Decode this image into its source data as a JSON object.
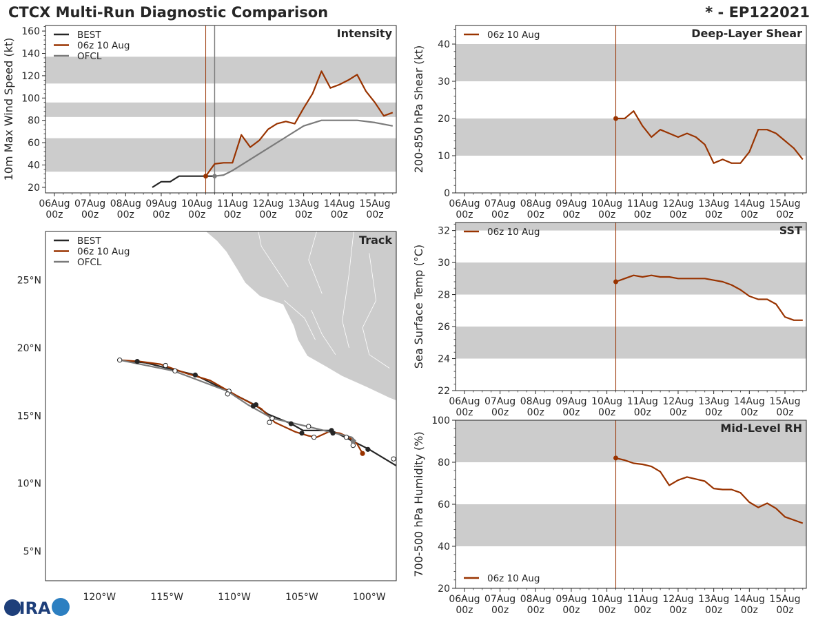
{
  "header": {
    "title": "CTCX Multi-Run Diagnostic Comparison",
    "storm_id": "* - EP122021"
  },
  "colors": {
    "best": "#262626",
    "run": "#993300",
    "ofcl": "#7a7a7a",
    "band": "#cccccc",
    "land": "#cccccc"
  },
  "logo": {
    "text": "CIRA"
  },
  "time_axis": {
    "ticks": [
      {
        "line1": "06Aug",
        "line2": "00z",
        "day": 0
      },
      {
        "line1": "07Aug",
        "line2": "00z",
        "day": 1
      },
      {
        "line1": "08Aug",
        "line2": "00z",
        "day": 2
      },
      {
        "line1": "09Aug",
        "line2": "00z",
        "day": 3
      },
      {
        "line1": "10Aug",
        "line2": "00z",
        "day": 4
      },
      {
        "line1": "11Aug",
        "line2": "00z",
        "day": 5
      },
      {
        "line1": "12Aug",
        "line2": "00z",
        "day": 6
      },
      {
        "line1": "13Aug",
        "line2": "00z",
        "day": 7
      },
      {
        "line1": "14Aug",
        "line2": "00z",
        "day": 8
      },
      {
        "line1": "15Aug",
        "line2": "00z",
        "day": 9
      }
    ],
    "range_days": [
      -0.25,
      9.6
    ]
  },
  "chart_data": [
    {
      "id": "intensity",
      "type": "line",
      "title": "Intensity",
      "ylabel": "10m Max Wind Speed (kt)",
      "ylim": [
        15,
        165
      ],
      "yticks": [
        20,
        40,
        60,
        80,
        100,
        120,
        140,
        160
      ],
      "bands": [
        [
          34,
          64
        ],
        [
          83,
          96
        ],
        [
          113,
          137
        ]
      ],
      "init_day": 4.25,
      "ofcl_vline_day": 4.5,
      "legend": [
        "BEST",
        "06z 10 Aug",
        "OFCL"
      ],
      "series": [
        {
          "name": "BEST",
          "color_key": "best",
          "x": [
            2.75,
            3.0,
            3.25,
            3.5,
            3.75,
            4.0,
            4.25,
            4.5
          ],
          "y": [
            20,
            25,
            25,
            30,
            30,
            30,
            30,
            30
          ]
        },
        {
          "name": "06z 10 Aug",
          "color_key": "run",
          "x": [
            4.25,
            4.5,
            4.75,
            5.0,
            5.25,
            5.5,
            5.75,
            6.0,
            6.25,
            6.5,
            6.75,
            7.0,
            7.25,
            7.5,
            7.75,
            8.0,
            8.25,
            8.5,
            8.75,
            9.0,
            9.25,
            9.5
          ],
          "y": [
            30,
            41,
            42,
            42,
            67,
            56,
            62,
            72,
            77,
            79,
            77,
            91,
            104,
            124,
            109,
            112,
            116,
            121,
            106,
            96,
            84,
            87
          ]
        },
        {
          "name": "OFCL",
          "color_key": "ofcl",
          "x": [
            4.5,
            4.75,
            5.0,
            5.5,
            6.0,
            6.5,
            7.0,
            7.5,
            8.0,
            8.5,
            9.0,
            9.5
          ],
          "y": [
            30,
            31,
            35,
            45,
            55,
            65,
            75,
            80,
            80,
            80,
            78,
            75
          ]
        }
      ]
    },
    {
      "id": "shear",
      "type": "line",
      "title": "Deep-Layer Shear",
      "ylabel": "200-850 hPa Shear (kt)",
      "ylim": [
        0,
        45
      ],
      "yticks": [
        0,
        10,
        20,
        30,
        40
      ],
      "bands": [
        [
          10,
          20
        ],
        [
          30,
          40
        ]
      ],
      "init_day": 4.25,
      "legend": [
        "06z 10 Aug"
      ],
      "series": [
        {
          "name": "06z 10 Aug",
          "color_key": "run",
          "x": [
            4.25,
            4.5,
            4.75,
            5.0,
            5.25,
            5.5,
            5.75,
            6.0,
            6.25,
            6.5,
            6.75,
            7.0,
            7.25,
            7.5,
            7.75,
            8.0,
            8.25,
            8.5,
            8.75,
            9.0,
            9.25,
            9.5
          ],
          "y": [
            20,
            20,
            22,
            18,
            15,
            17,
            16,
            15,
            16,
            15,
            13,
            8,
            9,
            8,
            8,
            11,
            17,
            17,
            16,
            14,
            12,
            9
          ]
        }
      ]
    },
    {
      "id": "sst",
      "type": "line",
      "title": "SST",
      "ylabel": "Sea Surface Temp (°C)",
      "ylim": [
        22,
        32.5
      ],
      "yticks": [
        22,
        24,
        26,
        28,
        30,
        32
      ],
      "bands": [
        [
          24,
          26
        ],
        [
          28,
          30
        ],
        [
          32,
          34
        ]
      ],
      "init_day": 4.25,
      "legend": [
        "06z 10 Aug"
      ],
      "series": [
        {
          "name": "06z 10 Aug",
          "color_key": "run",
          "x": [
            4.25,
            4.5,
            4.75,
            5.0,
            5.25,
            5.5,
            5.75,
            6.0,
            6.25,
            6.5,
            6.75,
            7.0,
            7.25,
            7.5,
            7.75,
            8.0,
            8.25,
            8.5,
            8.75,
            9.0,
            9.25,
            9.5
          ],
          "y": [
            28.8,
            29.0,
            29.2,
            29.1,
            29.2,
            29.1,
            29.1,
            29.0,
            29.0,
            29.0,
            29.0,
            28.9,
            28.8,
            28.6,
            28.3,
            27.9,
            27.7,
            27.7,
            27.4,
            26.6,
            26.4,
            26.4
          ]
        }
      ]
    },
    {
      "id": "rh",
      "type": "line",
      "title": "Mid-Level RH",
      "ylabel": "700-500 hPa Humidity (%)",
      "ylim": [
        20,
        100
      ],
      "yticks": [
        20,
        40,
        60,
        80,
        100
      ],
      "bands": [
        [
          40,
          60
        ],
        [
          80,
          100
        ]
      ],
      "init_day": 4.25,
      "legend": [
        "06z 10 Aug"
      ],
      "series": [
        {
          "name": "06z 10 Aug",
          "color_key": "run",
          "x": [
            4.25,
            4.5,
            4.75,
            5.0,
            5.25,
            5.5,
            5.75,
            6.0,
            6.25,
            6.5,
            6.75,
            7.0,
            7.25,
            7.5,
            7.75,
            8.0,
            8.25,
            8.5,
            8.75,
            9.0,
            9.25,
            9.5
          ],
          "y": [
            82,
            81,
            79.5,
            79,
            78,
            75.5,
            69,
            71.5,
            73,
            72,
            71,
            67.5,
            67,
            67,
            65.5,
            61,
            58.5,
            60.5,
            58,
            54,
            52.5,
            51
          ]
        }
      ]
    },
    {
      "id": "track",
      "type": "scatter",
      "title": "Track",
      "xlim": [
        -124,
        -98
      ],
      "ylim": [
        2.8,
        28.6
      ],
      "xticks": [
        {
          "v": -120,
          "label": "120°W"
        },
        {
          "v": -115,
          "label": "115°W"
        },
        {
          "v": -110,
          "label": "110°W"
        },
        {
          "v": -105,
          "label": "105°W"
        },
        {
          "v": -100,
          "label": "100°W"
        }
      ],
      "yticks": [
        {
          "v": 5,
          "label": "5°N"
        },
        {
          "v": 10,
          "label": "10°N"
        },
        {
          "v": 15,
          "label": "15°N"
        },
        {
          "v": 20,
          "label": "20°N"
        },
        {
          "v": 25,
          "label": "25°N"
        }
      ],
      "legend": [
        "BEST",
        "06z 10 Aug",
        "OFCL"
      ],
      "land": [
        [
          [
            -114.2,
            30
          ],
          [
            -112.6,
            29
          ],
          [
            -111.3,
            27.9
          ],
          [
            -110.6,
            27.1
          ],
          [
            -109.8,
            25.8
          ],
          [
            -109.2,
            24.8
          ],
          [
            -108.1,
            23.8
          ],
          [
            -106.4,
            23.2
          ],
          [
            -105.6,
            21.6
          ],
          [
            -105.3,
            20.6
          ],
          [
            -104.6,
            19.4
          ],
          [
            -103.2,
            18.6
          ],
          [
            -102,
            17.9
          ],
          [
            -100.2,
            17.1
          ],
          [
            -98.5,
            16.3
          ],
          [
            -98,
            16.1
          ],
          [
            -98,
            30
          ]
        ],
        [
          [
            -114.3,
            29.6
          ],
          [
            -113.7,
            28.4
          ],
          [
            -113,
            27.6
          ],
          [
            -112.1,
            26.3
          ],
          [
            -111.3,
            24.8
          ],
          [
            -110.3,
            24.2
          ],
          [
            -109.9,
            23.1
          ],
          [
            -110.4,
            23.4
          ],
          [
            -111.4,
            24.6
          ],
          [
            -112.2,
            25.4
          ],
          [
            -112.9,
            26.9
          ],
          [
            -114.1,
            27.7
          ],
          [
            -114.7,
            28.9
          ],
          [
            -114.9,
            30
          ]
        ]
      ],
      "land_labels": [],
      "series": [
        {
          "name": "BEST",
          "color_key": "best",
          "lon": [
            -118.5,
            -116.6,
            -112.9,
            -110.5,
            -108.5,
            -107.5,
            -105.8,
            -104.9,
            -102.8,
            -100,
            -98
          ],
          "lat": [
            19.1,
            18.9,
            18.0,
            16.8,
            15.8,
            15.1,
            14.4,
            13.9,
            13.9,
            12.5,
            11.3
          ],
          "dots_lon": [
            -117.2,
            -112.9,
            -108.6,
            -108.4,
            -105.8,
            -105.0,
            -102.8,
            -102.7,
            -100.1
          ],
          "dots_lat": [
            19.0,
            18.0,
            15.7,
            15.8,
            14.4,
            13.7,
            13.9,
            13.7,
            12.5
          ],
          "open_lon": [
            -98.2
          ],
          "open_lat": [
            11.8
          ]
        },
        {
          "name": "06z 10 Aug",
          "color_key": "run",
          "lon": [
            -118.5,
            -117.0,
            -115.5,
            -113.5,
            -111.8,
            -109.7,
            -108.0,
            -107.0,
            -105.5,
            -104.5,
            -103.9,
            -103.0,
            -102.2,
            -101.5,
            -100.9,
            -100.5
          ],
          "lat": [
            19.1,
            19.0,
            18.8,
            18.1,
            17.6,
            16.4,
            15.5,
            14.5,
            13.8,
            13.5,
            13.4,
            13.8,
            13.7,
            13.4,
            12.9,
            12.2
          ],
          "dots_lon": [
            -100.5
          ],
          "dots_lat": [
            12.2
          ],
          "open_lon": [
            -118.5,
            -115.1,
            -110.4,
            -107.4,
            -104.1,
            -101.2
          ],
          "open_lat": [
            19.1,
            18.7,
            16.8,
            14.5,
            13.4,
            12.8
          ]
        },
        {
          "name": "OFCL",
          "color_key": "ofcl",
          "lon": [
            -118.5,
            -114.5,
            -110.5,
            -109.0,
            -107.2,
            -104.6,
            -101.3,
            -101.0
          ],
          "lat": [
            19.1,
            18.3,
            16.8,
            15.8,
            14.8,
            14.2,
            13.4,
            13.1
          ],
          "dots_lon": [
            -101.2
          ],
          "dots_lat": [
            13.1
          ],
          "open_lon": [
            -114.4,
            -110.5,
            -107.2,
            -104.5,
            -101.7
          ],
          "open_lat": [
            18.3,
            16.6,
            14.8,
            14.2,
            13.4
          ]
        }
      ]
    }
  ]
}
